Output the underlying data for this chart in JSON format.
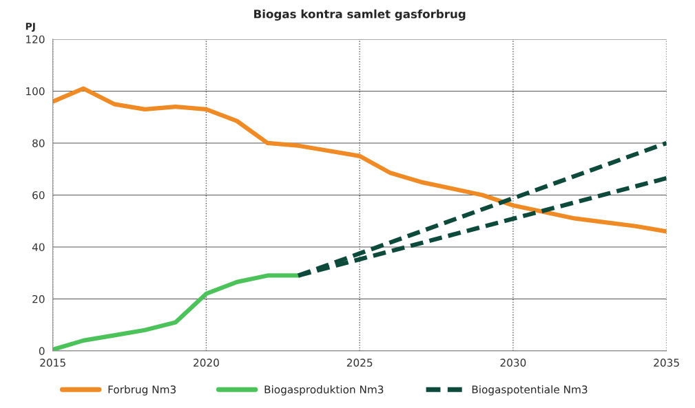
{
  "chart_data": {
    "type": "line",
    "title": "Biogas kontra samlet gasforbrug",
    "ylabel": "PJ",
    "x": [
      2015,
      2016,
      2017,
      2018,
      2019,
      2020,
      2021,
      2022,
      2023,
      2024,
      2025,
      2026,
      2027,
      2028,
      2029,
      2030,
      2031,
      2032,
      2033,
      2034,
      2035
    ],
    "series": [
      {
        "name": "Forbrug Nm3",
        "color": "#f08a24",
        "values": [
          96,
          101,
          95,
          93,
          94,
          93,
          88.5,
          80,
          79,
          77,
          75,
          68.5,
          65,
          62.5,
          60,
          56,
          53.5,
          51,
          49.5,
          48,
          46
        ]
      },
      {
        "name": "Biogasproduktion Nm3",
        "color": "#4cc35a",
        "x": [
          2015,
          2016,
          2017,
          2018,
          2019,
          2020,
          2021,
          2022,
          2023
        ],
        "values": [
          0.5,
          4,
          6,
          8,
          11,
          22,
          26.5,
          29,
          29
        ]
      },
      {
        "name": "Biogaspotentiale Nm3",
        "color": "#0d4a3c",
        "line_style": "dashed",
        "x": [
          2023,
          2035
        ],
        "values": [
          29,
          80
        ]
      },
      {
        "color": "#0d4a3c",
        "line_style": "dashed",
        "x": [
          2023,
          2035
        ],
        "values": [
          29,
          66.5
        ]
      }
    ],
    "xlim": [
      2015,
      2035
    ],
    "xticks": [
      2015,
      2020,
      2025,
      2030,
      2035
    ],
    "ylim": [
      0,
      120
    ],
    "yticks": [
      0,
      20,
      40,
      60,
      80,
      100,
      120
    ],
    "grid": true,
    "legend": "bottom",
    "line_style": "solid"
  }
}
